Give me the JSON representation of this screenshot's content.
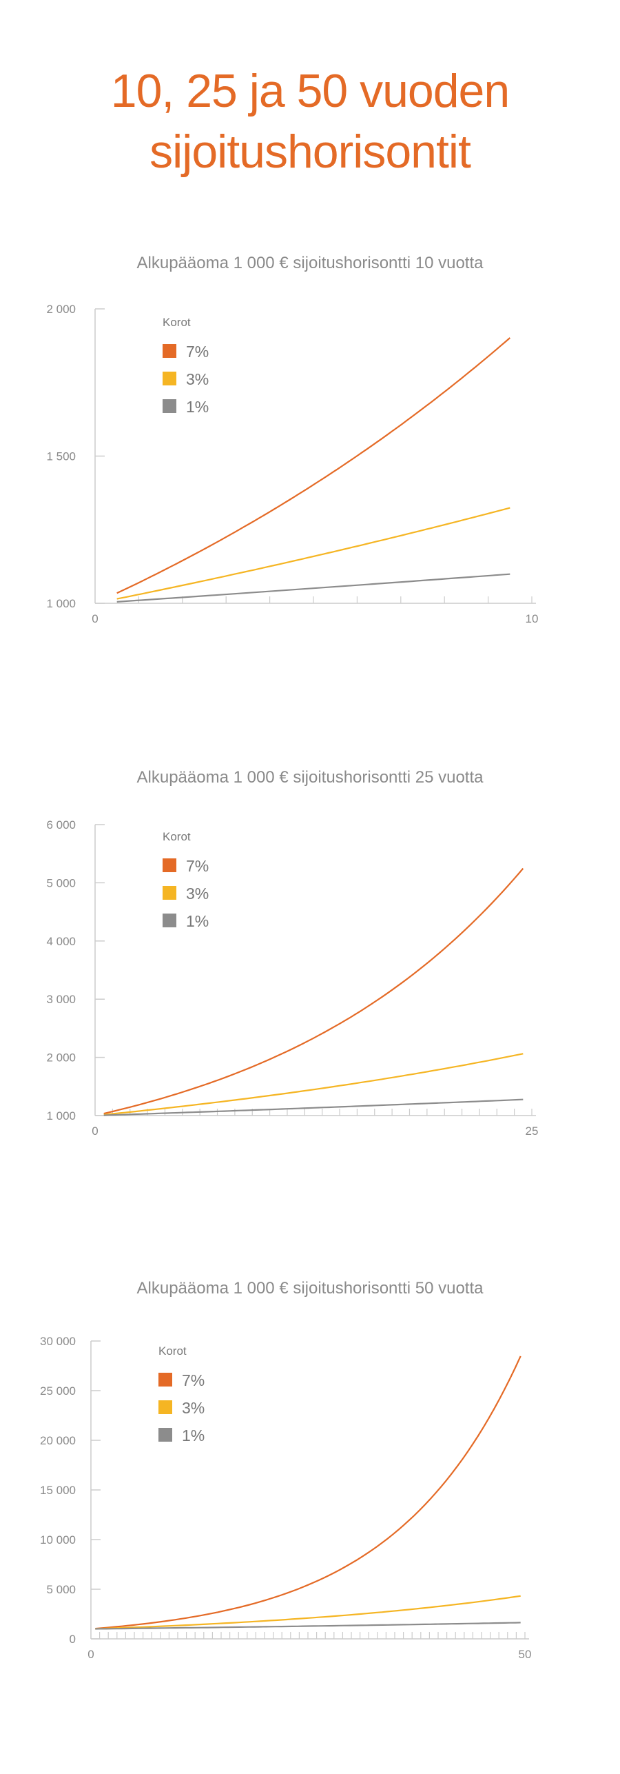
{
  "page": {
    "title_line1": "10, 25 ja 50 vuoden",
    "title_line2": "sijoitushorisontit"
  },
  "colors": {
    "accent": "#e46a26",
    "rate_7": "#e46a26",
    "rate_3": "#f5b523",
    "rate_1": "#8c8c8c",
    "axis": "#cccccc"
  },
  "chart_data": [
    {
      "type": "line",
      "title": "Alkupääoma 1 000 € sijoitushorisontti 10 vuotta",
      "xlabel": "",
      "ylabel": "",
      "xlim": [
        0,
        10
      ],
      "ylim": [
        1000,
        2000
      ],
      "y_ticks": [
        1000,
        1500,
        2000
      ],
      "y_tick_labels": [
        "1 000",
        "1 500",
        "2 000"
      ],
      "x_tick_labels": [
        "0",
        "10"
      ],
      "minor_x_ticks": 10,
      "legend_title": "Korot",
      "legend_position": "top-left",
      "principal": 1000,
      "years": 10,
      "series": [
        {
          "name": "7%",
          "rate": 0.07
        },
        {
          "name": "3%",
          "rate": 0.03
        },
        {
          "name": "1%",
          "rate": 0.01
        }
      ]
    },
    {
      "type": "line",
      "title": "Alkupääoma 1 000 € sijoitushorisontti 25 vuotta",
      "xlabel": "",
      "ylabel": "",
      "xlim": [
        0,
        25
      ],
      "ylim": [
        1000,
        6000
      ],
      "y_ticks": [
        1000,
        2000,
        3000,
        4000,
        5000,
        6000
      ],
      "y_tick_labels": [
        "1 000",
        "2 000",
        "3 000",
        "4 000",
        "5 000",
        "6 000"
      ],
      "x_tick_labels": [
        "0",
        "25"
      ],
      "minor_x_ticks": 25,
      "legend_title": "Korot",
      "legend_position": "top-left",
      "principal": 1000,
      "years": 25,
      "series": [
        {
          "name": "7%",
          "rate": 0.07
        },
        {
          "name": "3%",
          "rate": 0.03
        },
        {
          "name": "1%",
          "rate": 0.01
        }
      ]
    },
    {
      "type": "line",
      "title": "Alkupääoma 1 000 € sijoitushorisontti 50 vuotta",
      "xlabel": "",
      "ylabel": "",
      "xlim": [
        0,
        50
      ],
      "ylim": [
        0,
        30000
      ],
      "y_ticks": [
        0,
        5000,
        10000,
        15000,
        20000,
        25000,
        30000
      ],
      "y_tick_labels": [
        "0",
        "5 000",
        "10 000",
        "15 000",
        "20 000",
        "25 000",
        "30 000"
      ],
      "x_tick_labels": [
        "0",
        "50"
      ],
      "minor_x_ticks": 50,
      "legend_title": "Korot",
      "legend_position": "top-left",
      "principal": 1000,
      "years": 50,
      "series": [
        {
          "name": "7%",
          "rate": 0.07
        },
        {
          "name": "3%",
          "rate": 0.03
        },
        {
          "name": "1%",
          "rate": 0.01
        }
      ]
    }
  ]
}
